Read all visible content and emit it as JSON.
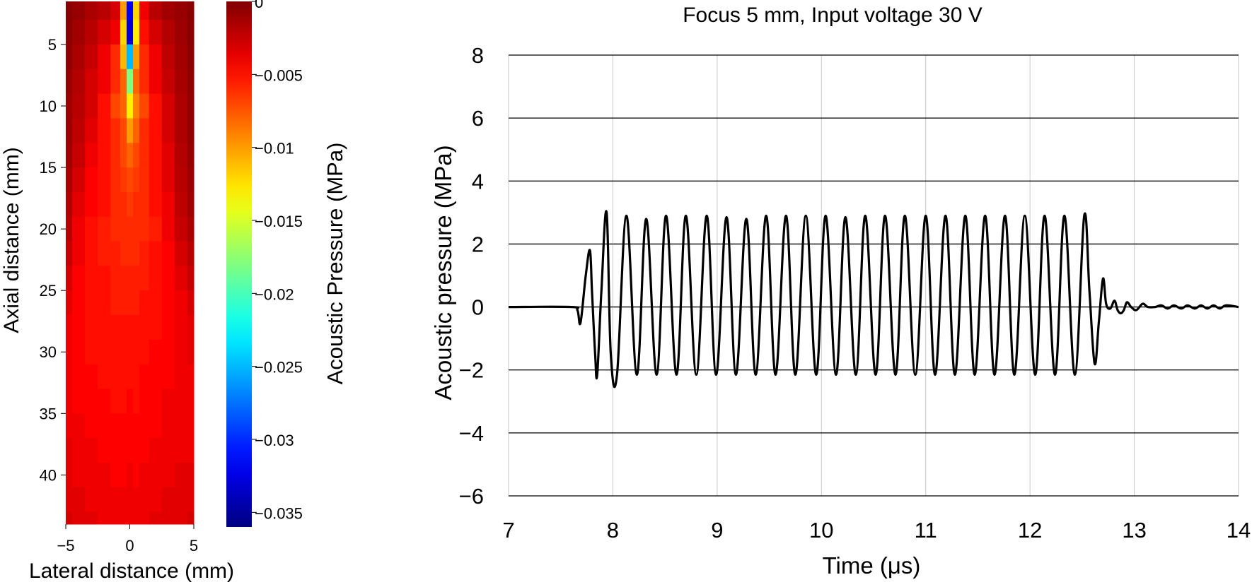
{
  "chart_data": [
    {
      "type": "heatmap",
      "title": "",
      "xlabel": "Lateral distance (mm)",
      "ylabel": "Axial distance (mm)",
      "xlim": [
        -5,
        5
      ],
      "ylim": [
        44,
        1.5
      ],
      "xticks": [
        "−5",
        "0",
        "5"
      ],
      "yticks": [
        "5",
        "10",
        "15",
        "20",
        "25",
        "30",
        "35",
        "40"
      ],
      "colorbar": {
        "label": "Acoustic Pressure (MPa)",
        "range": [
          -0.036,
          0
        ],
        "ticks": [
          "0",
          "−0.005",
          "−0.01",
          "−0.015",
          "−0.02",
          "−0.025",
          "−0.03",
          "−0.035"
        ],
        "colormap": "jet"
      },
      "x_centers_mm": [
        -5,
        -4,
        -3,
        -2,
        -1,
        -0.5,
        0,
        0.5,
        1,
        2,
        3,
        4,
        5
      ],
      "y_centers_mm": [
        2,
        4,
        6,
        8,
        10,
        12,
        14,
        16,
        18,
        20,
        22,
        24,
        26,
        28,
        30,
        32,
        34,
        36,
        38,
        40,
        42,
        44
      ],
      "values_mpa": [
        [
          -0.0003,
          -0.0008,
          -0.0015,
          -0.002,
          -0.003,
          -0.01,
          -0.032,
          -0.012,
          -0.004,
          -0.002,
          -0.0012,
          -0.0008,
          -0.0003
        ],
        [
          -0.0004,
          -0.0012,
          -0.002,
          -0.003,
          -0.004,
          -0.012,
          -0.033,
          -0.013,
          -0.005,
          -0.003,
          -0.0018,
          -0.001,
          -0.0004
        ],
        [
          -0.0006,
          -0.0015,
          -0.0025,
          -0.004,
          -0.006,
          -0.011,
          -0.025,
          -0.01,
          -0.006,
          -0.004,
          -0.0022,
          -0.0012,
          -0.0005
        ],
        [
          -0.0008,
          -0.0018,
          -0.003,
          -0.004,
          -0.006,
          -0.008,
          -0.018,
          -0.008,
          -0.006,
          -0.004,
          -0.0025,
          -0.0014,
          -0.0006
        ],
        [
          -0.001,
          -0.002,
          -0.003,
          -0.005,
          -0.007,
          -0.008,
          -0.013,
          -0.009,
          -0.007,
          -0.005,
          -0.003,
          -0.0016,
          -0.0007
        ],
        [
          -0.001,
          -0.0022,
          -0.0035,
          -0.005,
          -0.006,
          -0.007,
          -0.01,
          -0.008,
          -0.006,
          -0.005,
          -0.003,
          -0.0016,
          -0.0007
        ],
        [
          -0.0012,
          -0.0025,
          -0.004,
          -0.005,
          -0.006,
          -0.007,
          -0.008,
          -0.007,
          -0.006,
          -0.005,
          -0.0035,
          -0.0018,
          -0.0008
        ],
        [
          -0.0015,
          -0.003,
          -0.0045,
          -0.005,
          -0.006,
          -0.0065,
          -0.007,
          -0.0065,
          -0.006,
          -0.005,
          -0.0035,
          -0.002,
          -0.001
        ],
        [
          -0.0018,
          -0.0035,
          -0.0045,
          -0.005,
          -0.006,
          -0.006,
          -0.0065,
          -0.006,
          -0.006,
          -0.005,
          -0.004,
          -0.0022,
          -0.0012
        ],
        [
          -0.002,
          -0.004,
          -0.005,
          -0.0055,
          -0.006,
          -0.006,
          -0.006,
          -0.006,
          -0.006,
          -0.0055,
          -0.004,
          -0.0025,
          -0.0015
        ],
        [
          -0.0025,
          -0.004,
          -0.005,
          -0.0055,
          -0.0055,
          -0.006,
          -0.006,
          -0.006,
          -0.0055,
          -0.005,
          -0.0045,
          -0.003,
          -0.002
        ],
        [
          -0.003,
          -0.0045,
          -0.005,
          -0.005,
          -0.0055,
          -0.0055,
          -0.0055,
          -0.0055,
          -0.0055,
          -0.005,
          -0.0045,
          -0.0035,
          -0.0025
        ],
        [
          -0.0035,
          -0.0045,
          -0.005,
          -0.005,
          -0.0055,
          -0.0055,
          -0.0055,
          -0.0055,
          -0.005,
          -0.005,
          -0.0045,
          -0.004,
          -0.003
        ],
        [
          -0.004,
          -0.0045,
          -0.005,
          -0.005,
          -0.005,
          -0.005,
          -0.005,
          -0.005,
          -0.005,
          -0.005,
          -0.0045,
          -0.004,
          -0.0035
        ],
        [
          -0.004,
          -0.0045,
          -0.005,
          -0.005,
          -0.005,
          -0.005,
          -0.005,
          -0.005,
          -0.005,
          -0.0045,
          -0.0045,
          -0.004,
          -0.0035
        ],
        [
          -0.004,
          -0.0045,
          -0.0045,
          -0.005,
          -0.005,
          -0.005,
          -0.005,
          -0.005,
          -0.0045,
          -0.0045,
          -0.0045,
          -0.004,
          -0.004
        ],
        [
          -0.004,
          -0.0045,
          -0.0045,
          -0.0045,
          -0.005,
          -0.005,
          -0.0045,
          -0.005,
          -0.0045,
          -0.0045,
          -0.004,
          -0.004,
          -0.004
        ],
        [
          -0.004,
          -0.004,
          -0.0045,
          -0.0045,
          -0.0045,
          -0.0045,
          -0.0045,
          -0.0045,
          -0.0045,
          -0.0045,
          -0.004,
          -0.004,
          -0.004
        ],
        [
          -0.0035,
          -0.004,
          -0.004,
          -0.0045,
          -0.0045,
          -0.0045,
          -0.0045,
          -0.0045,
          -0.0045,
          -0.004,
          -0.004,
          -0.004,
          -0.004
        ],
        [
          -0.0035,
          -0.004,
          -0.004,
          -0.004,
          -0.0045,
          -0.0045,
          -0.004,
          -0.0045,
          -0.004,
          -0.004,
          -0.004,
          -0.0035,
          -0.0035
        ],
        [
          -0.0035,
          -0.0035,
          -0.004,
          -0.004,
          -0.004,
          -0.004,
          -0.004,
          -0.004,
          -0.004,
          -0.004,
          -0.0035,
          -0.0035,
          -0.0035
        ],
        [
          -0.003,
          -0.0035,
          -0.0035,
          -0.004,
          -0.004,
          -0.004,
          -0.004,
          -0.004,
          -0.004,
          -0.0035,
          -0.0035,
          -0.0035,
          -0.003
        ]
      ]
    },
    {
      "type": "line",
      "title": "Focus 5 mm, Input voltage 30 V",
      "xlabel": "Time (μs)",
      "ylabel": "Acoustic pressure (MPa)",
      "xlim": [
        7,
        14
      ],
      "ylim": [
        -6,
        8
      ],
      "xticks": [
        "7",
        "8",
        "9",
        "10",
        "11",
        "12",
        "13",
        "14"
      ],
      "yticks": [
        "8",
        "6",
        "4",
        "2",
        "0",
        "−2",
        "−4",
        "−6"
      ],
      "grid": true,
      "line_color": "#000000",
      "series": [
        {
          "x": [
            7.0,
            7.6,
            7.66,
            7.69,
            7.74,
            7.78,
            7.8,
            7.83,
            7.85,
            7.89,
            7.94,
            7.98,
            8.04,
            8.13,
            8.23,
            8.32,
            8.42,
            8.51,
            8.61,
            8.7,
            8.8,
            8.9,
            8.99,
            9.09,
            9.18,
            9.28,
            9.37,
            9.47,
            9.56,
            9.66,
            9.75,
            9.85,
            9.95,
            10.04,
            10.14,
            10.23,
            10.33,
            10.42,
            10.52,
            10.61,
            10.71,
            10.8,
            10.9,
            11.0,
            11.09,
            11.19,
            11.28,
            11.38,
            11.47,
            11.57,
            11.66,
            11.76,
            11.85,
            11.95,
            12.05,
            12.14,
            12.24,
            12.33,
            12.43,
            12.52,
            12.57,
            12.62,
            12.66,
            12.7,
            12.73,
            12.77,
            12.81,
            12.84,
            12.87,
            12.9,
            12.93,
            12.97,
            13.02,
            13.08,
            13.13,
            13.2,
            13.26,
            13.32,
            13.38,
            13.45,
            13.51,
            13.58,
            13.64,
            13.7,
            13.76,
            13.82,
            13.88,
            14.0
          ],
          "y": [
            0.0,
            0.0,
            -0.1,
            -0.5,
            1.0,
            1.8,
            0.5,
            -1.5,
            -2.15,
            0.5,
            3.0,
            -1.5,
            -2.15,
            2.9,
            -2.15,
            2.8,
            -2.15,
            2.9,
            -2.15,
            2.9,
            -2.15,
            2.9,
            -2.15,
            2.85,
            -2.15,
            2.8,
            -2.15,
            2.9,
            -2.15,
            2.9,
            -2.15,
            2.9,
            -2.15,
            2.9,
            -2.15,
            2.85,
            -2.15,
            2.9,
            -2.15,
            2.9,
            -2.15,
            2.9,
            -2.15,
            2.9,
            -2.15,
            2.9,
            -2.15,
            2.9,
            -2.15,
            2.9,
            -2.15,
            2.9,
            -2.15,
            2.9,
            -2.15,
            2.9,
            -2.15,
            2.9,
            -2.15,
            2.9,
            0.5,
            -1.8,
            -0.5,
            0.9,
            0.1,
            -0.05,
            0.2,
            -0.1,
            -0.2,
            -0.1,
            0.15,
            0.0,
            -0.1,
            0.1,
            0.0,
            0.0,
            0.05,
            -0.05,
            0.05,
            -0.05,
            0.05,
            -0.05,
            0.05,
            -0.05,
            0.05,
            -0.05,
            0.05,
            0.0
          ]
        }
      ]
    }
  ]
}
